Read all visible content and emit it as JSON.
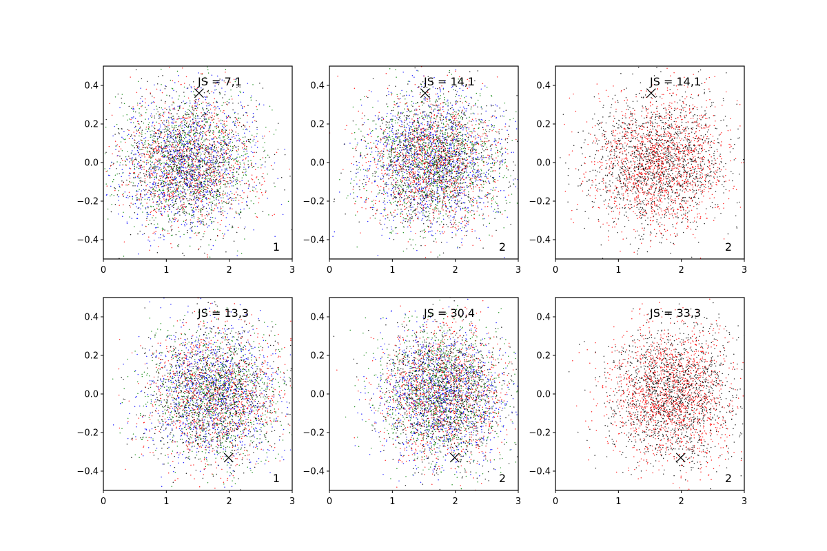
{
  "colors": {
    "blue": "#0000ff",
    "green": "#008000",
    "red": "#ff0000",
    "black": "#000000",
    "marker": "#000000"
  },
  "chart_data": [
    {
      "type": "scatter",
      "label": "JS = 7,1",
      "panel_number": "1",
      "marker": {
        "x": 1.52,
        "y": 0.36,
        "symbol": "x"
      },
      "series_colors": [
        "blue",
        "green",
        "red",
        "black"
      ],
      "points_per_series": 1000,
      "distribution": {
        "x_mean": 1.35,
        "x_sd": 0.55,
        "y_mean": 0.0,
        "y_sd": 0.18
      },
      "xlim": [
        0,
        3
      ],
      "ylim": [
        -0.5,
        0.5
      ],
      "xticks": [
        0,
        1,
        2,
        3
      ],
      "yticks": [
        -0.4,
        -0.2,
        0.0,
        0.2,
        0.4
      ],
      "xtick_labels": [
        "0",
        "1",
        "2",
        "3"
      ],
      "ytick_labels": [
        "−0.4",
        "−0.2",
        "0.0",
        "0.2",
        "0.4"
      ]
    },
    {
      "type": "scatter",
      "label": "JS = 14,1",
      "panel_number": "2",
      "marker": {
        "x": 1.52,
        "y": 0.36,
        "symbol": "x"
      },
      "series_colors": [
        "blue",
        "green",
        "red",
        "black"
      ],
      "points_per_series": 1100,
      "distribution": {
        "x_mean": 1.65,
        "x_sd": 0.55,
        "y_mean": 0.0,
        "y_sd": 0.18
      },
      "xlim": [
        0,
        3
      ],
      "ylim": [
        -0.5,
        0.5
      ],
      "xticks": [
        0,
        1,
        2,
        3
      ],
      "yticks": [
        -0.4,
        -0.2,
        0.0,
        0.2,
        0.4
      ],
      "xtick_labels": [
        "0",
        "1",
        "2",
        "3"
      ],
      "ytick_labels": [
        "−0.4",
        "−0.2",
        "0.0",
        "0.2",
        "0.4"
      ]
    },
    {
      "type": "scatter",
      "label": "JS = 14,1",
      "panel_number": "2",
      "marker": {
        "x": 1.52,
        "y": 0.36,
        "symbol": "x"
      },
      "series_colors": [
        "black",
        "red"
      ],
      "points_per_series": 1500,
      "distribution": {
        "x_mean": 1.65,
        "x_sd": 0.55,
        "y_mean": 0.0,
        "y_sd": 0.18
      },
      "xlim": [
        0,
        3
      ],
      "ylim": [
        -0.5,
        0.5
      ],
      "xticks": [
        0,
        1,
        2,
        3
      ],
      "yticks": [
        -0.4,
        -0.2,
        0.0,
        0.2,
        0.4
      ],
      "xtick_labels": [
        "0",
        "1",
        "2",
        "3"
      ],
      "ytick_labels": [
        "−0.4",
        "−0.2",
        "0.0",
        "0.2",
        "0.4"
      ]
    },
    {
      "type": "scatter",
      "label": "JS = 13,3",
      "panel_number": "1",
      "marker": {
        "x": 1.99,
        "y": -0.33,
        "symbol": "x"
      },
      "series_colors": [
        "blue",
        "green",
        "red",
        "black"
      ],
      "points_per_series": 1000,
      "distribution": {
        "x_mean": 1.75,
        "x_sd": 0.55,
        "y_mean": 0.0,
        "y_sd": 0.18
      },
      "xlim": [
        0,
        3
      ],
      "ylim": [
        -0.5,
        0.5
      ],
      "xticks": [
        0,
        1,
        2,
        3
      ],
      "yticks": [
        -0.4,
        -0.2,
        0.0,
        0.2,
        0.4
      ],
      "xtick_labels": [
        "0",
        "1",
        "2",
        "3"
      ],
      "ytick_labels": [
        "−0.4",
        "−0.2",
        "0.0",
        "0.2",
        "0.4"
      ]
    },
    {
      "type": "scatter",
      "label": "JS = 30,4",
      "panel_number": "2",
      "marker": {
        "x": 1.99,
        "y": -0.33,
        "symbol": "x"
      },
      "series_colors": [
        "blue",
        "green",
        "red",
        "black"
      ],
      "points_per_series": 1100,
      "distribution": {
        "x_mean": 1.8,
        "x_sd": 0.5,
        "y_mean": 0.0,
        "y_sd": 0.18
      },
      "xlim": [
        0,
        3
      ],
      "ylim": [
        -0.5,
        0.5
      ],
      "xticks": [
        0,
        1,
        2,
        3
      ],
      "yticks": [
        -0.4,
        -0.2,
        0.0,
        0.2,
        0.4
      ],
      "xtick_labels": [
        "0",
        "1",
        "2",
        "3"
      ],
      "ytick_labels": [
        "−0.4",
        "−0.2",
        "0.0",
        "0.2",
        "0.4"
      ]
    },
    {
      "type": "scatter",
      "label": "JS = 33,3",
      "panel_number": "2",
      "marker": {
        "x": 1.99,
        "y": -0.33,
        "symbol": "x"
      },
      "series_colors": [
        "black",
        "red"
      ],
      "points_per_series": 1500,
      "distribution": {
        "x_mean": 1.85,
        "x_sd": 0.5,
        "y_mean": 0.0,
        "y_sd": 0.18
      },
      "xlim": [
        0,
        3
      ],
      "ylim": [
        -0.5,
        0.5
      ],
      "xticks": [
        0,
        1,
        2,
        3
      ],
      "yticks": [
        -0.4,
        -0.2,
        0.0,
        0.2,
        0.4
      ],
      "xtick_labels": [
        "0",
        "1",
        "2",
        "3"
      ],
      "ytick_labels": [
        "−0.4",
        "−0.2",
        "0.0",
        "0.2",
        "0.4"
      ]
    }
  ]
}
